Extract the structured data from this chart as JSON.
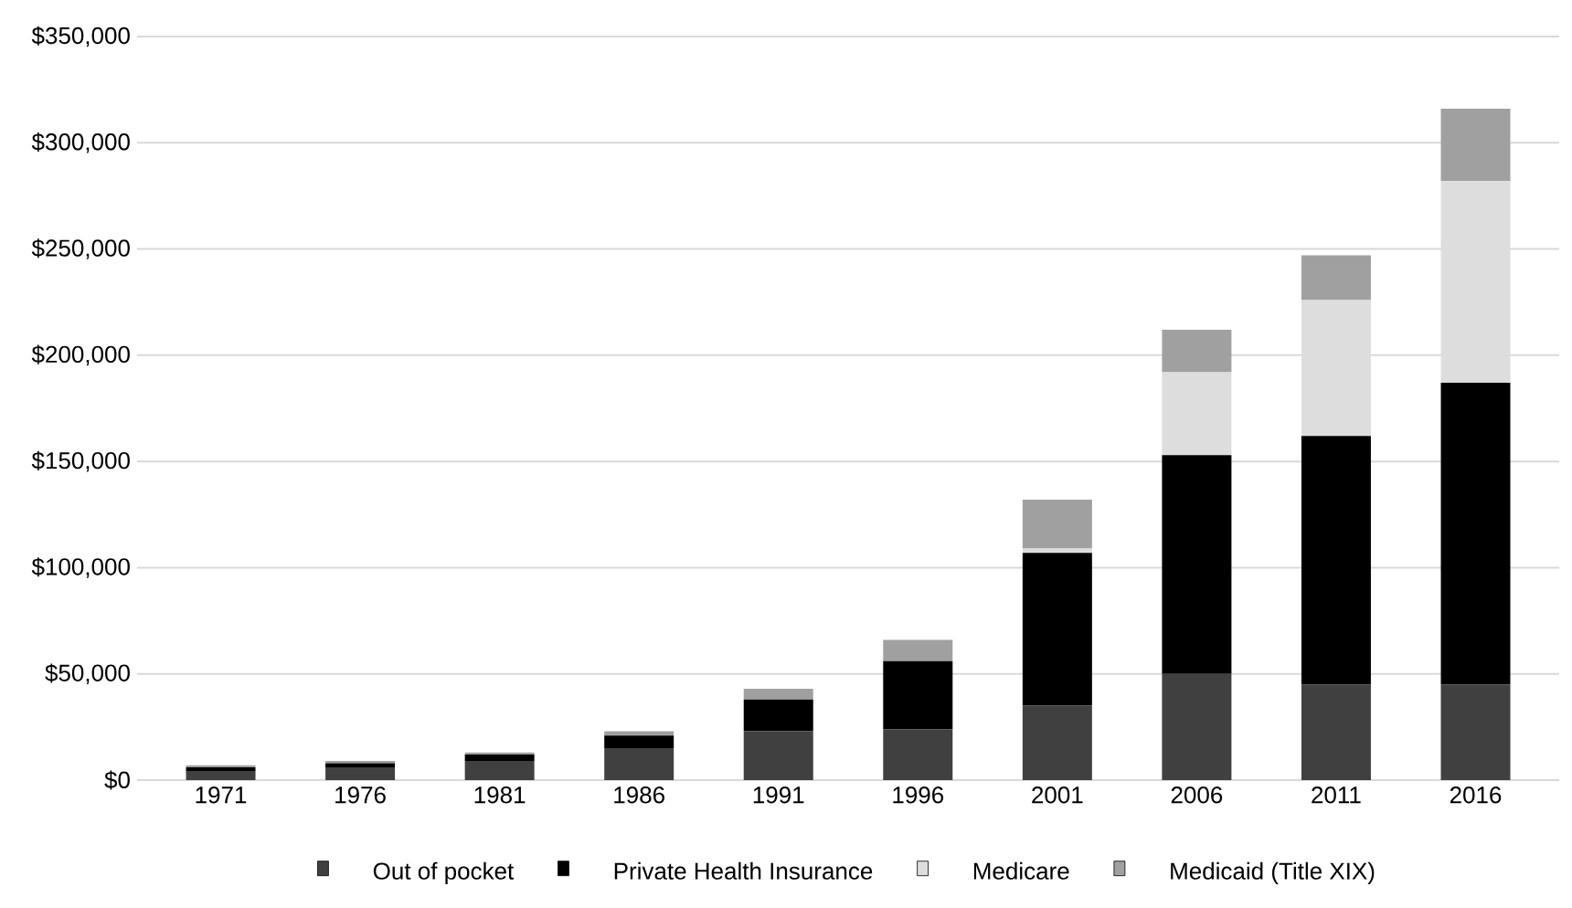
{
  "chart_data": {
    "type": "bar",
    "stacked": true,
    "categories": [
      "1971",
      "1976",
      "1981",
      "1986",
      "1991",
      "1996",
      "2001",
      "2006",
      "2011",
      "2016"
    ],
    "series": [
      {
        "name": "Out of pocket",
        "color": "#404040",
        "values": [
          4000,
          6000,
          9000,
          15000,
          23000,
          24000,
          35000,
          50000,
          45000,
          45000
        ]
      },
      {
        "name": "Private Health Insurance",
        "color": "#000000",
        "values": [
          2000,
          2000,
          3000,
          6000,
          15000,
          32000,
          72000,
          103000,
          117000,
          142000
        ]
      },
      {
        "name": "Medicare",
        "color": "#dddddd",
        "values": [
          0,
          0,
          0,
          0,
          0,
          0,
          2000,
          39000,
          64000,
          95000
        ]
      },
      {
        "name": "Medicaid (Title XIX)",
        "color": "#a0a0a0",
        "values": [
          1000,
          1000,
          1000,
          2000,
          5000,
          10000,
          23000,
          20000,
          21000,
          34000
        ]
      }
    ],
    "ylim": [
      0,
      350000
    ],
    "yticks": [
      {
        "value": 0,
        "label": "$0"
      },
      {
        "value": 50000,
        "label": "$50,000"
      },
      {
        "value": 100000,
        "label": "$100,000"
      },
      {
        "value": 150000,
        "label": "$150,000"
      },
      {
        "value": 200000,
        "label": "$200,000"
      },
      {
        "value": 250000,
        "label": "$250,000"
      },
      {
        "value": 300000,
        "label": "$300,000"
      },
      {
        "value": 350000,
        "label": "$350,000"
      }
    ],
    "grid": "y",
    "legend": "bottom"
  }
}
